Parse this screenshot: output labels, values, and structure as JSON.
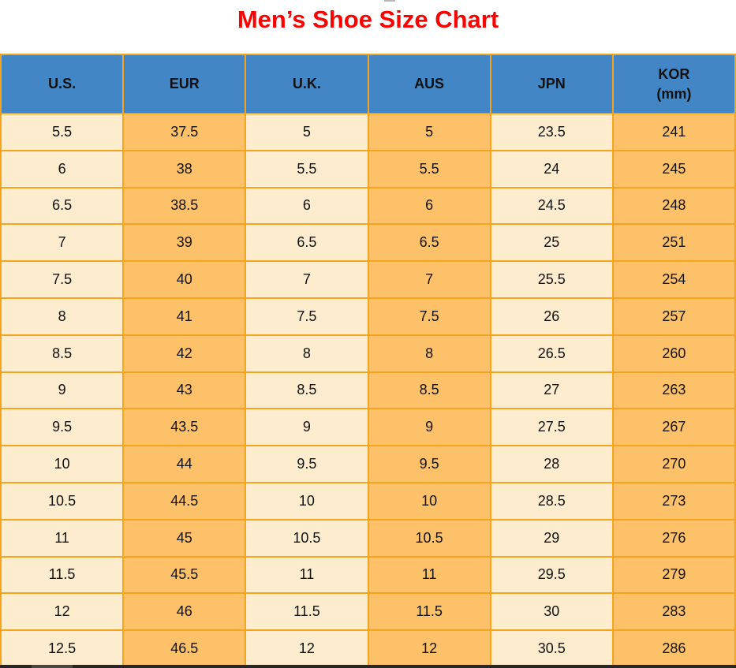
{
  "title": "Men’s Shoe Size Chart",
  "colors": {
    "title_red": "#ff0000",
    "header_blue": "#4286c5",
    "cell_cream": "#fdeccd",
    "cell_orange": "#fdc269",
    "grid_line": "#f5a41d",
    "text": "#111111",
    "taskbar_dark": "#262626",
    "taskbar_light": "#484848"
  },
  "table": {
    "headers": [
      {
        "label": "U.S.",
        "sub": ""
      },
      {
        "label": "EUR",
        "sub": ""
      },
      {
        "label": "U.K.",
        "sub": ""
      },
      {
        "label": "AUS",
        "sub": ""
      },
      {
        "label": "JPN",
        "sub": ""
      },
      {
        "label": "KOR",
        "sub": "(mm)"
      }
    ],
    "rows": [
      [
        "5.5",
        "37.5",
        "5",
        "5",
        "23.5",
        "241"
      ],
      [
        "6",
        "38",
        "5.5",
        "5.5",
        "24",
        "245"
      ],
      [
        "6.5",
        "38.5",
        "6",
        "6",
        "24.5",
        "248"
      ],
      [
        "7",
        "39",
        "6.5",
        "6.5",
        "25",
        "251"
      ],
      [
        "7.5",
        "40",
        "7",
        "7",
        "25.5",
        "254"
      ],
      [
        "8",
        "41",
        "7.5",
        "7.5",
        "26",
        "257"
      ],
      [
        "8.5",
        "42",
        "8",
        "8",
        "26.5",
        "260"
      ],
      [
        "9",
        "43",
        "8.5",
        "8.5",
        "27",
        "263"
      ],
      [
        "9.5",
        "43.5",
        "9",
        "9",
        "27.5",
        "267"
      ],
      [
        "10",
        "44",
        "9.5",
        "9.5",
        "28",
        "270"
      ],
      [
        "10.5",
        "44.5",
        "10",
        "10",
        "28.5",
        "273"
      ],
      [
        "11",
        "45",
        "10.5",
        "10.5",
        "29",
        "276"
      ],
      [
        "11.5",
        "45.5",
        "11",
        "11",
        "29.5",
        "279"
      ],
      [
        "12",
        "46",
        "11.5",
        "11.5",
        "30",
        "283"
      ],
      [
        "12.5",
        "46.5",
        "12",
        "12",
        "30.5",
        "286"
      ]
    ]
  },
  "chart_data": {
    "type": "table",
    "title": "Men’s Shoe Size Chart",
    "columns": [
      "U.S.",
      "EUR",
      "U.K.",
      "AUS",
      "JPN",
      "KOR (mm)"
    ],
    "rows": [
      [
        5.5,
        37.5,
        5,
        5,
        23.5,
        241
      ],
      [
        6,
        38,
        5.5,
        5.5,
        24,
        245
      ],
      [
        6.5,
        38.5,
        6,
        6,
        24.5,
        248
      ],
      [
        7,
        39,
        6.5,
        6.5,
        25,
        251
      ],
      [
        7.5,
        40,
        7,
        7,
        25.5,
        254
      ],
      [
        8,
        41,
        7.5,
        7.5,
        26,
        257
      ],
      [
        8.5,
        42,
        8,
        8,
        26.5,
        260
      ],
      [
        9,
        43,
        8.5,
        8.5,
        27,
        263
      ],
      [
        9.5,
        43.5,
        9,
        9,
        27.5,
        267
      ],
      [
        10,
        44,
        9.5,
        9.5,
        28,
        270
      ],
      [
        10.5,
        44.5,
        10,
        10,
        28.5,
        273
      ],
      [
        11,
        45,
        10.5,
        10.5,
        29,
        276
      ],
      [
        11.5,
        45.5,
        11,
        11,
        29.5,
        279
      ],
      [
        12,
        46,
        11.5,
        11.5,
        30,
        283
      ],
      [
        12.5,
        46.5,
        12,
        12,
        30.5,
        286
      ]
    ]
  }
}
